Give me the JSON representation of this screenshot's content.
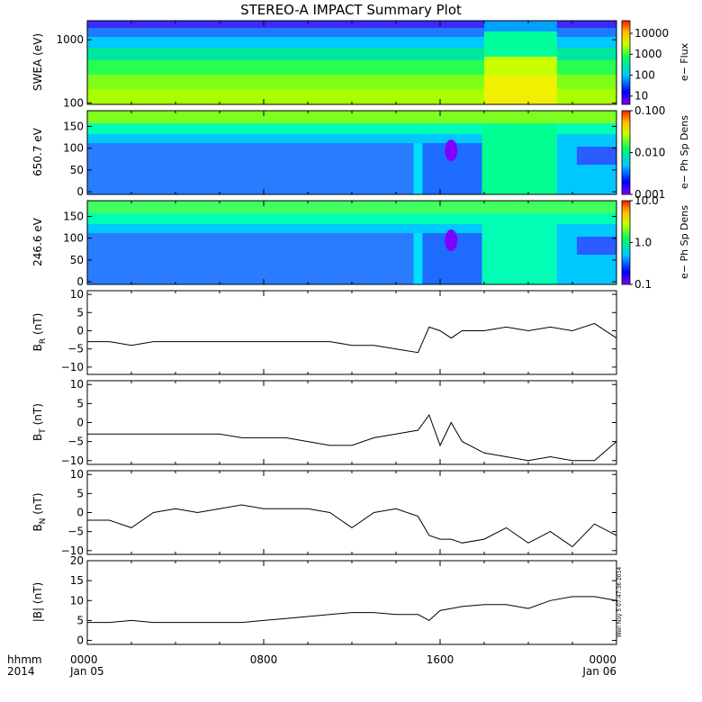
{
  "title": "STEREO-A IMPACT Summary Plot",
  "stamp": "Wen Noy  5 07:47:36 2014",
  "time_axis": {
    "row1": [
      "hhmm",
      "0000",
      "0800",
      "1600",
      "0000"
    ],
    "row2": [
      "2014",
      "Jan 05",
      "",
      "",
      "Jan 06"
    ]
  },
  "chart_data": [
    {
      "type": "heatmap",
      "ylabel": "SWEA (eV)",
      "ylog": true,
      "ylim": [
        95,
        2000
      ],
      "yticks": [
        100,
        1000
      ],
      "ytick_labels": [
        "100",
        "1000"
      ],
      "colorbar": {
        "label": "e− Flux",
        "scale": "log",
        "range": [
          4,
          40000
        ],
        "ticks": [
          10,
          100,
          1000,
          10000
        ],
        "tick_labels": [
          "10",
          "100",
          "1000",
          "10000"
        ]
      }
    },
    {
      "type": "heatmap",
      "ylabel": "650.7 eV",
      "ylim": [
        -6,
        186
      ],
      "yticks": [
        0,
        50,
        100,
        150
      ],
      "ytick_labels": [
        "0",
        "50",
        "100",
        "150"
      ],
      "colorbar": {
        "label": "e− Ph Sp Dens",
        "scale": "log",
        "range": [
          0.001,
          0.1
        ],
        "ticks": [
          0.001,
          0.01,
          0.1
        ],
        "tick_labels": [
          "0.001",
          "0.010",
          "0.100"
        ]
      }
    },
    {
      "type": "heatmap",
      "ylabel": "246.6 eV",
      "ylim": [
        -6,
        186
      ],
      "yticks": [
        0,
        50,
        100,
        150
      ],
      "ytick_labels": [
        "0",
        "50",
        "100",
        "150"
      ],
      "colorbar": {
        "label": "e− Ph Sp Dens",
        "scale": "log",
        "range": [
          0.1,
          10
        ],
        "ticks": [
          0.1,
          1,
          10
        ],
        "tick_labels": [
          "0.1",
          "1.0",
          "10.0"
        ]
      }
    },
    {
      "type": "line",
      "ylabel": "B",
      "ylabel_sub": "R",
      "ylabel_unit": "(nT)",
      "ylim": [
        -12,
        11
      ],
      "yticks": [
        -10,
        -5,
        0,
        5,
        10
      ],
      "ytick_labels": [
        "−10",
        "−5",
        "0",
        "5",
        "10"
      ],
      "x_hours": [
        0,
        1,
        2,
        3,
        4,
        5,
        6,
        7,
        8,
        9,
        10,
        11,
        12,
        13,
        14,
        15,
        15.5,
        16,
        16.5,
        17,
        18,
        19,
        20,
        21,
        22,
        23,
        24
      ],
      "values": [
        -3,
        -3,
        -4,
        -3,
        -3,
        -3,
        -3,
        -3,
        -3,
        -3,
        -3,
        -3,
        -4,
        -4,
        -5,
        -6,
        1,
        0,
        -2,
        0,
        0,
        1,
        0,
        1,
        0,
        2,
        -2
      ]
    },
    {
      "type": "line",
      "ylabel": "B",
      "ylabel_sub": "T",
      "ylabel_unit": "(nT)",
      "ylim": [
        -11,
        11
      ],
      "yticks": [
        -10,
        -5,
        0,
        5,
        10
      ],
      "ytick_labels": [
        "−10",
        "−5",
        "0",
        "5",
        "10"
      ],
      "x_hours": [
        0,
        1,
        2,
        3,
        4,
        5,
        6,
        7,
        8,
        9,
        10,
        11,
        12,
        13,
        14,
        15,
        15.5,
        16,
        16.5,
        17,
        18,
        19,
        20,
        21,
        22,
        23,
        24
      ],
      "values": [
        -3,
        -3,
        -3,
        -3,
        -3,
        -3,
        -3,
        -4,
        -4,
        -4,
        -5,
        -6,
        -6,
        -4,
        -3,
        -2,
        2,
        -6,
        0,
        -5,
        -8,
        -9,
        -10,
        -9,
        -10,
        -10,
        -5
      ]
    },
    {
      "type": "line",
      "ylabel": "B",
      "ylabel_sub": "N",
      "ylabel_unit": "(nT)",
      "ylim": [
        -11,
        11
      ],
      "yticks": [
        -10,
        -5,
        0,
        5,
        10
      ],
      "ytick_labels": [
        "−10",
        "−5",
        "0",
        "5",
        "10"
      ],
      "x_hours": [
        0,
        1,
        2,
        3,
        4,
        5,
        6,
        7,
        8,
        9,
        10,
        11,
        12,
        13,
        14,
        15,
        15.5,
        16,
        16.5,
        17,
        18,
        19,
        20,
        21,
        22,
        23,
        24
      ],
      "values": [
        -2,
        -2,
        -4,
        0,
        1,
        0,
        1,
        2,
        1,
        1,
        1,
        0,
        -4,
        0,
        1,
        -1,
        -6,
        -7,
        -7,
        -8,
        -7,
        -4,
        -8,
        -5,
        -9,
        -3,
        -6
      ]
    },
    {
      "type": "line",
      "ylabel": "|B|",
      "ylabel_unit": "(nT)",
      "ylim": [
        -1,
        20
      ],
      "yticks": [
        0,
        5,
        10,
        15,
        20
      ],
      "ytick_labels": [
        "0",
        "5",
        "10",
        "15",
        "20"
      ],
      "x_hours": [
        0,
        1,
        2,
        3,
        4,
        5,
        6,
        7,
        8,
        9,
        10,
        11,
        12,
        13,
        14,
        15,
        15.5,
        16,
        16.5,
        17,
        18,
        19,
        20,
        21,
        22,
        23,
        24
      ],
      "values": [
        4.5,
        4.5,
        5,
        4.5,
        4.5,
        4.5,
        4.5,
        4.5,
        5,
        5.5,
        6,
        6.5,
        7,
        7,
        6.5,
        6.5,
        5,
        7.5,
        8,
        8.5,
        9,
        9,
        8,
        10,
        11,
        11,
        10
      ]
    }
  ]
}
